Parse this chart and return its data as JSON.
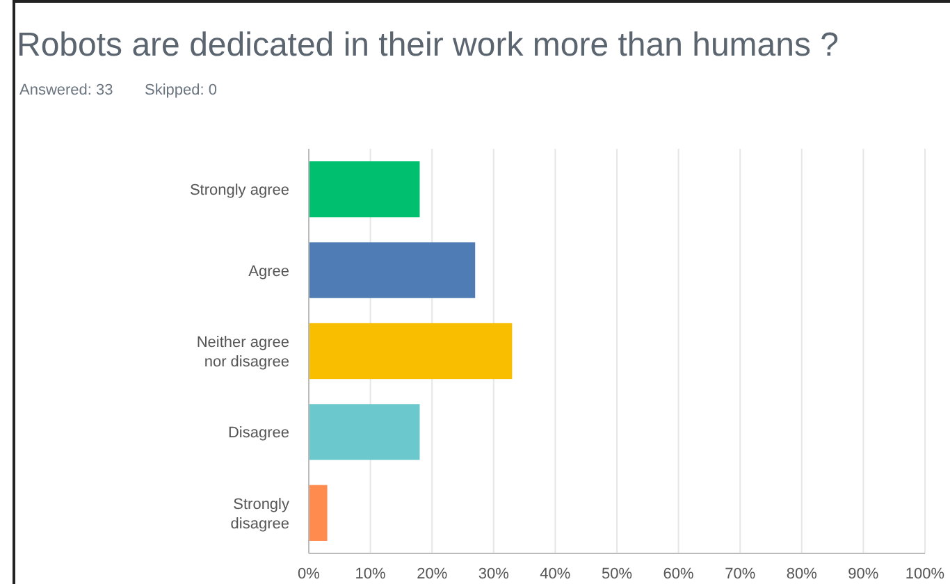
{
  "chart_data": {
    "type": "bar",
    "orientation": "horizontal",
    "title": "Robots are dedicated in their work more than humans ?",
    "annotations": [
      "Answered: 33",
      "Skipped: 0"
    ],
    "categories": [
      "Strongly agree",
      "Agree",
      "Neither agree nor disagree",
      "Disagree",
      "Strongly disagree"
    ],
    "values": [
      18,
      27,
      33,
      18,
      3
    ],
    "colors": [
      "#00bf6f",
      "#507cb6",
      "#f9be00",
      "#6bc8cd",
      "#ff8b4f"
    ],
    "xlim": [
      0,
      100
    ],
    "xticks": [
      {
        "value": 0,
        "label": "0%"
      },
      {
        "value": 10,
        "label": "10%"
      },
      {
        "value": 20,
        "label": "20%"
      },
      {
        "value": 30,
        "label": "30%"
      },
      {
        "value": 40,
        "label": "40%"
      },
      {
        "value": 50,
        "label": "50%"
      },
      {
        "value": 60,
        "label": "60%"
      },
      {
        "value": 70,
        "label": "70%"
      },
      {
        "value": 80,
        "label": "80%"
      },
      {
        "value": 90,
        "label": "90%"
      },
      {
        "value": 100,
        "label": "100%"
      }
    ],
    "grid": "x"
  }
}
